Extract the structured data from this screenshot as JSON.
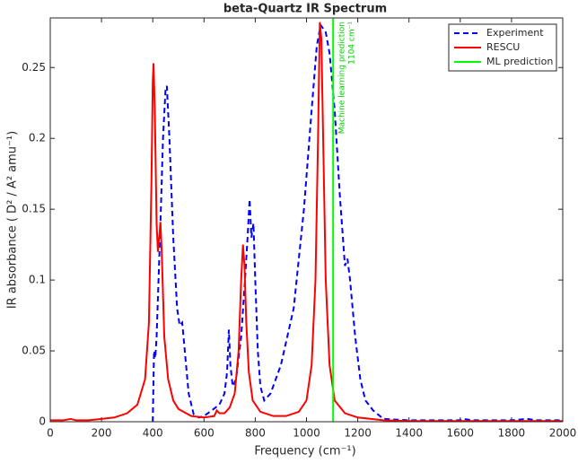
{
  "chart_data": {
    "type": "line",
    "title": "beta-Quartz IR Spectrum",
    "xlabel": "Frequency (cm⁻¹)",
    "ylabel": "IR absorbance ( D² / A² amu⁻¹)",
    "xlim": [
      0,
      2000
    ],
    "ylim": [
      0,
      0.285
    ],
    "xticks": [
      0,
      200,
      400,
      600,
      800,
      1000,
      1200,
      1400,
      1600,
      1800,
      2000
    ],
    "yticks": [
      0,
      0.05,
      0.1,
      0.15,
      0.2,
      0.25
    ],
    "grid": false,
    "legend": "northeast",
    "series": [
      {
        "name": "Experiment",
        "color": "#0000ff",
        "style": "dashed",
        "x": [
          400,
          405,
          410,
          415,
          430,
          440,
          450,
          455,
          465,
          480,
          495,
          505,
          515,
          525,
          540,
          560,
          580,
          600,
          630,
          660,
          680,
          690,
          697,
          703,
          712,
          725,
          745,
          760,
          770,
          778,
          785,
          793,
          800,
          810,
          820,
          835,
          860,
          900,
          950,
          990,
          1020,
          1040,
          1055,
          1075,
          1090,
          1110,
          1130,
          1150,
          1160,
          1170,
          1190,
          1210,
          1230,
          1260,
          1300,
          1400,
          1600,
          1610,
          1650,
          1700,
          1800,
          1860,
          1900,
          2000
        ],
        "values": [
          0,
          0.05,
          0.045,
          0.06,
          0.14,
          0.2,
          0.235,
          0.237,
          0.2,
          0.13,
          0.08,
          0.068,
          0.07,
          0.05,
          0.02,
          0.005,
          0.003,
          0.004,
          0.008,
          0.012,
          0.02,
          0.035,
          0.065,
          0.04,
          0.025,
          0.03,
          0.06,
          0.1,
          0.13,
          0.157,
          0.13,
          0.14,
          0.1,
          0.05,
          0.025,
          0.015,
          0.02,
          0.04,
          0.08,
          0.15,
          0.22,
          0.265,
          0.28,
          0.275,
          0.26,
          0.22,
          0.16,
          0.11,
          0.115,
          0.1,
          0.06,
          0.03,
          0.015,
          0.008,
          0.002,
          0.001,
          0.001,
          0.002,
          0.001,
          0.001,
          0.001,
          0.002,
          0.001,
          0.001
        ]
      },
      {
        "name": "RESCU",
        "color": "#ff0000",
        "style": "solid",
        "x": [
          0,
          50,
          80,
          100,
          150,
          200,
          250,
          300,
          340,
          370,
          385,
          395,
          400,
          403,
          408,
          415,
          420,
          425,
          430,
          435,
          445,
          460,
          480,
          500,
          550,
          600,
          640,
          650,
          660,
          680,
          700,
          720,
          735,
          745,
          752,
          758,
          765,
          775,
          790,
          820,
          870,
          920,
          970,
          1000,
          1020,
          1035,
          1045,
          1052,
          1058,
          1065,
          1075,
          1090,
          1110,
          1150,
          1200,
          1300,
          1400,
          2000
        ],
        "values": [
          0.001,
          0.001,
          0.002,
          0.001,
          0.001,
          0.002,
          0.003,
          0.006,
          0.012,
          0.03,
          0.07,
          0.17,
          0.24,
          0.253,
          0.22,
          0.14,
          0.12,
          0.13,
          0.141,
          0.12,
          0.06,
          0.03,
          0.015,
          0.009,
          0.004,
          0.003,
          0.004,
          0.008,
          0.006,
          0.006,
          0.01,
          0.02,
          0.05,
          0.1,
          0.125,
          0.11,
          0.07,
          0.035,
          0.015,
          0.007,
          0.004,
          0.004,
          0.007,
          0.015,
          0.04,
          0.1,
          0.2,
          0.282,
          0.27,
          0.2,
          0.1,
          0.04,
          0.015,
          0.006,
          0.003,
          0.001,
          0.0005,
          0.0005
        ]
      },
      {
        "name": "ML prediction",
        "color": "#00ff00",
        "style": "solid",
        "x": [
          1104,
          1104
        ],
        "values": [
          0,
          0.285
        ]
      }
    ],
    "annotation": {
      "x": 1104,
      "lines": [
        "Machine learning prediction",
        "1104 cm⁻¹"
      ],
      "color": "#00cc00"
    }
  }
}
